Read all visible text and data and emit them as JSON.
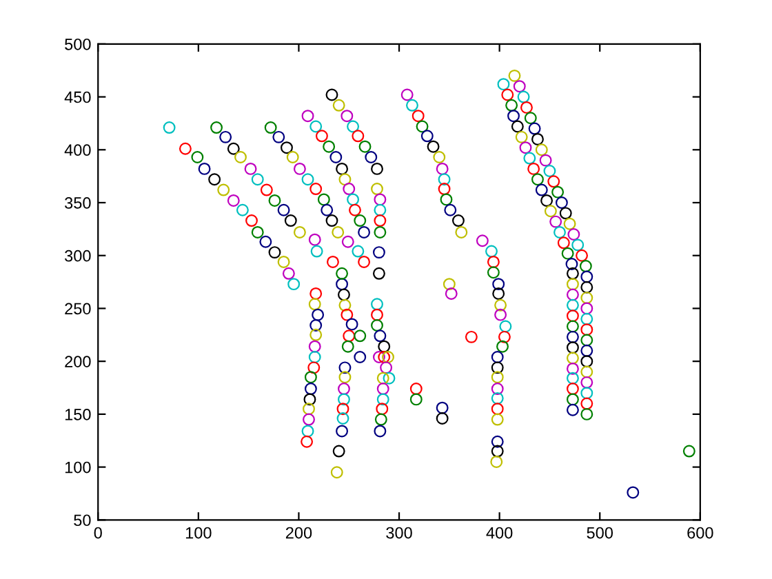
{
  "chart_data": {
    "type": "scatter",
    "marker": "circle",
    "xlim": [
      0,
      600
    ],
    "ylim": [
      50,
      500
    ],
    "xticks": [
      0,
      100,
      200,
      300,
      400,
      500,
      600
    ],
    "yticks": [
      50,
      100,
      150,
      200,
      250,
      300,
      350,
      400,
      450,
      500
    ],
    "series": [
      {
        "x": [
          71,
          87,
          99,
          106,
          116,
          125,
          135,
          144,
          153,
          159,
          167,
          176,
          185,
          190,
          195
        ],
        "values": [
          421,
          401,
          393,
          382,
          372,
          362,
          352,
          343,
          333,
          322,
          313,
          303,
          294,
          283,
          273
        ],
        "colors": [
          "#00bfbf",
          "#ff0000",
          "#008000",
          "#000080",
          "#000000",
          "#bfbf00",
          "#bf00bf",
          "#00bfbf",
          "#ff0000",
          "#008000",
          "#000080",
          "#000000",
          "#bfbf00",
          "#bf00bf",
          "#00bfbf"
        ]
      },
      {
        "x": [
          118,
          127,
          135,
          142,
          152,
          159,
          168,
          176,
          185,
          192,
          201
        ],
        "values": [
          421,
          412,
          401,
          393,
          382,
          372,
          362,
          352,
          343,
          333,
          322
        ],
        "colors": [
          "#008000",
          "#000080",
          "#000000",
          "#bfbf00",
          "#bf00bf",
          "#00bfbf",
          "#ff0000",
          "#008000",
          "#000080",
          "#000000",
          "#bfbf00"
        ]
      },
      {
        "x": [
          172,
          180,
          188,
          194,
          201,
          209,
          217,
          225,
          228,
          233,
          239,
          249,
          259,
          265
        ],
        "values": [
          421,
          412,
          402,
          393,
          382,
          372,
          363,
          353,
          343,
          333,
          322,
          313,
          304,
          294
        ],
        "colors": [
          "#008000",
          "#000080",
          "#000000",
          "#bfbf00",
          "#bf00bf",
          "#00bfbf",
          "#ff0000",
          "#008000",
          "#000080",
          "#000000",
          "#bfbf00",
          "#bf00bf",
          "#00bfbf",
          "#ff0000"
        ]
      },
      {
        "x": [
          209,
          217,
          223,
          230,
          237,
          243,
          246,
          250,
          254,
          256,
          261,
          265
        ],
        "values": [
          432,
          422,
          413,
          403,
          393,
          382,
          372,
          363,
          353,
          343,
          333,
          322
        ],
        "colors": [
          "#bf00bf",
          "#00bfbf",
          "#ff0000",
          "#008000",
          "#000080",
          "#000000",
          "#bfbf00",
          "#bf00bf",
          "#00bfbf",
          "#ff0000",
          "#008000",
          "#000080"
        ]
      },
      {
        "x": [
          233,
          240,
          248,
          254,
          259,
          266,
          272,
          278,
          278,
          281,
          281,
          281,
          281,
          280,
          280
        ],
        "values": [
          452,
          442,
          432,
          422,
          413,
          403,
          393,
          382,
          363,
          353,
          343,
          333,
          322,
          303,
          283
        ],
        "colors": [
          "#000000",
          "#bfbf00",
          "#bf00bf",
          "#00bfbf",
          "#ff0000",
          "#008000",
          "#000080",
          "#000000",
          "#bfbf00",
          "#bf00bf",
          "#00bfbf",
          "#ff0000",
          "#008000",
          "#000080",
          "#000000"
        ]
      },
      {
        "x": [
          243,
          245,
          246,
          248,
          253,
          250,
          249,
          246,
          246,
          245,
          245,
          244,
          244,
          243,
          240,
          238
        ],
        "values": [
          273,
          263,
          253,
          244,
          235,
          224,
          214,
          194,
          185,
          174,
          164,
          155,
          146,
          134,
          115,
          95
        ],
        "colors": [
          "#000080",
          "#000000",
          "#bfbf00",
          "#ff0000",
          "#000080",
          "#ff0000",
          "#008000",
          "#000080",
          "#bfbf00",
          "#bf00bf",
          "#00bfbf",
          "#ff0000",
          "#00bfbf",
          "#000080",
          "#000000",
          "#bfbf00"
        ]
      },
      {
        "x": [
          217,
          216,
          219,
          217,
          217,
          216,
          216,
          215,
          212,
          212,
          211,
          210,
          210,
          209,
          208
        ],
        "values": [
          264,
          254,
          244,
          234,
          225,
          214,
          204,
          194,
          185,
          174,
          164,
          155,
          145,
          134,
          124
        ],
        "colors": [
          "#ff0000",
          "#bfbf00",
          "#000080",
          "#000080",
          "#bfbf00",
          "#bf00bf",
          "#00bfbf",
          "#ff0000",
          "#008000",
          "#000080",
          "#000000",
          "#bfbf00",
          "#bf00bf",
          "#00bfbf",
          "#ff0000"
        ]
      },
      {
        "x": [
          278,
          278,
          278,
          281,
          285,
          280,
          285,
          289,
          287,
          290,
          284,
          284,
          284,
          283,
          282,
          281
        ],
        "values": [
          254,
          244,
          234,
          224,
          214,
          204,
          204,
          204,
          194,
          184,
          184,
          174,
          164,
          155,
          145,
          134
        ],
        "colors": [
          "#00bfbf",
          "#ff0000",
          "#008000",
          "#000080",
          "#000000",
          "#bf00bf",
          "#ff0000",
          "#bfbf00",
          "#bf00bf",
          "#00bfbf",
          "#bfbf00",
          "#bf00bf",
          "#00bfbf",
          "#ff0000",
          "#008000",
          "#000080"
        ]
      },
      {
        "x": [
          261,
          261,
          216,
          218,
          234,
          243,
          317,
          317,
          343,
          343,
          350,
          352,
          372,
          589,
          533
        ],
        "values": [
          224,
          204,
          315,
          304,
          294,
          283,
          174,
          164,
          156,
          146,
          273,
          264,
          223,
          115,
          76
        ],
        "colors": [
          "#008000",
          "#000080",
          "#bf00bf",
          "#00bfbf",
          "#ff0000",
          "#008000",
          "#ff0000",
          "#008000",
          "#000080",
          "#000000",
          "#bfbf00",
          "#bf00bf",
          "#ff0000",
          "#008000",
          "#000080"
        ]
      },
      {
        "x": [
          308,
          313,
          319,
          323,
          328,
          334,
          340,
          343,
          345,
          345,
          347,
          351,
          359,
          362
        ],
        "values": [
          452,
          442,
          432,
          422,
          413,
          403,
          393,
          382,
          372,
          363,
          353,
          343,
          333,
          322
        ],
        "colors": [
          "#bf00bf",
          "#00bfbf",
          "#ff0000",
          "#008000",
          "#000080",
          "#000000",
          "#bfbf00",
          "#bf00bf",
          "#00bfbf",
          "#ff0000",
          "#008000",
          "#000080",
          "#000000",
          "#bfbf00"
        ]
      },
      {
        "x": [
          383,
          392,
          394,
          394,
          399,
          399,
          401,
          401,
          406,
          405,
          403,
          398,
          398,
          398,
          398,
          398,
          398,
          398,
          398,
          398,
          397
        ],
        "values": [
          314,
          304,
          294,
          284,
          273,
          264,
          253,
          244,
          233,
          223,
          214,
          204,
          194,
          185,
          174,
          165,
          155,
          145,
          124,
          115,
          105
        ],
        "colors": [
          "#bf00bf",
          "#00bfbf",
          "#ff0000",
          "#008000",
          "#000080",
          "#000000",
          "#bfbf00",
          "#bf00bf",
          "#00bfbf",
          "#ff0000",
          "#008000",
          "#000080",
          "#000000",
          "#bfbf00",
          "#bf00bf",
          "#00bfbf",
          "#ff0000",
          "#bfbf00",
          "#000080",
          "#000000",
          "#bfbf00"
        ]
      },
      {
        "x": [
          404,
          408,
          412,
          414,
          418,
          422,
          426,
          430,
          434,
          438,
          442,
          447,
          451,
          456,
          460,
          464,
          468,
          472,
          473,
          473,
          473,
          473,
          473,
          473,
          473,
          473,
          473,
          473,
          473,
          473,
          473,
          473
        ],
        "values": [
          462,
          452,
          442,
          432,
          422,
          412,
          402,
          392,
          382,
          372,
          362,
          352,
          342,
          332,
          322,
          312,
          302,
          292,
          283,
          273,
          263,
          253,
          243,
          233,
          223,
          213,
          203,
          193,
          184,
          174,
          164,
          154
        ],
        "colors": [
          "#00bfbf",
          "#ff0000",
          "#008000",
          "#000080",
          "#000000",
          "#bfbf00",
          "#bf00bf",
          "#00bfbf",
          "#ff0000",
          "#008000",
          "#000080",
          "#000000",
          "#bfbf00",
          "#bf00bf",
          "#00bfbf",
          "#ff0000",
          "#008000",
          "#000080",
          "#000000",
          "#bfbf00",
          "#bf00bf",
          "#00bfbf",
          "#ff0000",
          "#008000",
          "#000080",
          "#000000",
          "#bfbf00",
          "#bf00bf",
          "#00bfbf",
          "#ff0000",
          "#008000",
          "#000080"
        ]
      },
      {
        "x": [
          415,
          420,
          424,
          427,
          431,
          435,
          438,
          442,
          446,
          450,
          454,
          458,
          462,
          466,
          470,
          474,
          478,
          482,
          486,
          487,
          487,
          487,
          487,
          487,
          487,
          487,
          487,
          487,
          487,
          487,
          487,
          487,
          487
        ],
        "values": [
          470,
          460,
          450,
          440,
          430,
          420,
          410,
          400,
          390,
          380,
          370,
          360,
          350,
          340,
          330,
          320,
          310,
          300,
          290,
          280,
          270,
          260,
          250,
          240,
          230,
          220,
          210,
          200,
          190,
          180,
          170,
          160,
          150
        ],
        "colors": [
          "#bfbf00",
          "#bf00bf",
          "#00bfbf",
          "#ff0000",
          "#008000",
          "#000080",
          "#000000",
          "#bfbf00",
          "#bf00bf",
          "#00bfbf",
          "#ff0000",
          "#008000",
          "#000080",
          "#000000",
          "#bfbf00",
          "#bf00bf",
          "#00bfbf",
          "#ff0000",
          "#008000",
          "#000080",
          "#000000",
          "#bfbf00",
          "#bf00bf",
          "#00bfbf",
          "#ff0000",
          "#008000",
          "#000080",
          "#000000",
          "#bfbf00",
          "#bf00bf",
          "#00bfbf",
          "#ff0000",
          "#008000"
        ]
      }
    ]
  }
}
